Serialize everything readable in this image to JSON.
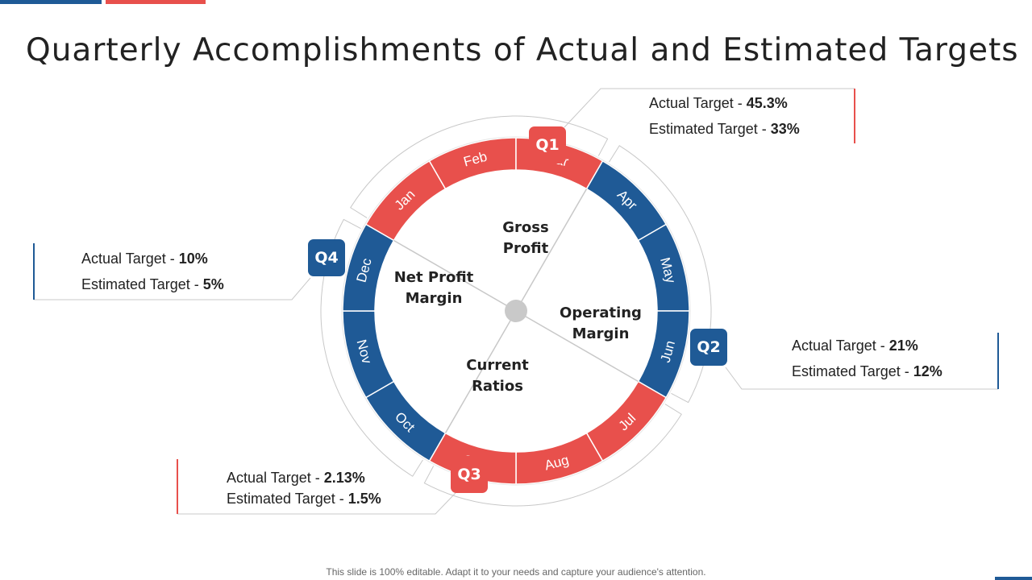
{
  "title": "Quarterly Accomplishments of Actual and Estimated Targets",
  "colors": {
    "red": "#e8504c",
    "blue": "#1f5a96",
    "line": "#c8c8c8",
    "hub": "#c9c9c9"
  },
  "segments": [
    {
      "line1": "Gross",
      "line2": "Profit"
    },
    {
      "line1": "Operating",
      "line2": "Margin"
    },
    {
      "line1": "Current",
      "line2": "Ratios"
    },
    {
      "line1": "Net Profit",
      "line2": "Margin"
    }
  ],
  "months": [
    "Jan",
    "Feb",
    "Mar",
    "Apr",
    "May",
    "Jun",
    "Jul",
    "Aug",
    "Sep",
    "Oct",
    "Nov",
    "Dec"
  ],
  "quarters": [
    {
      "label": "Q1",
      "actual_label": "Actual Target - ",
      "actual_value": "45.3%",
      "estimated_label": "Estimated Target - ",
      "estimated_value": "33%"
    },
    {
      "label": "Q2",
      "actual_label": "Actual Target - ",
      "actual_value": "21%",
      "estimated_label": "Estimated Target - ",
      "estimated_value": "12%"
    },
    {
      "label": "Q3",
      "actual_label": "Actual Target - ",
      "actual_value": "2.13%",
      "estimated_label": "Estimated Target - ",
      "estimated_value": "1.5%"
    },
    {
      "label": "Q4",
      "actual_label": "Actual Target - ",
      "actual_value": "10%",
      "estimated_label": "Estimated Target - ",
      "estimated_value": "5%"
    }
  ],
  "footer": "This slide is 100% editable. Adapt it to your needs and capture your audience's attention."
}
